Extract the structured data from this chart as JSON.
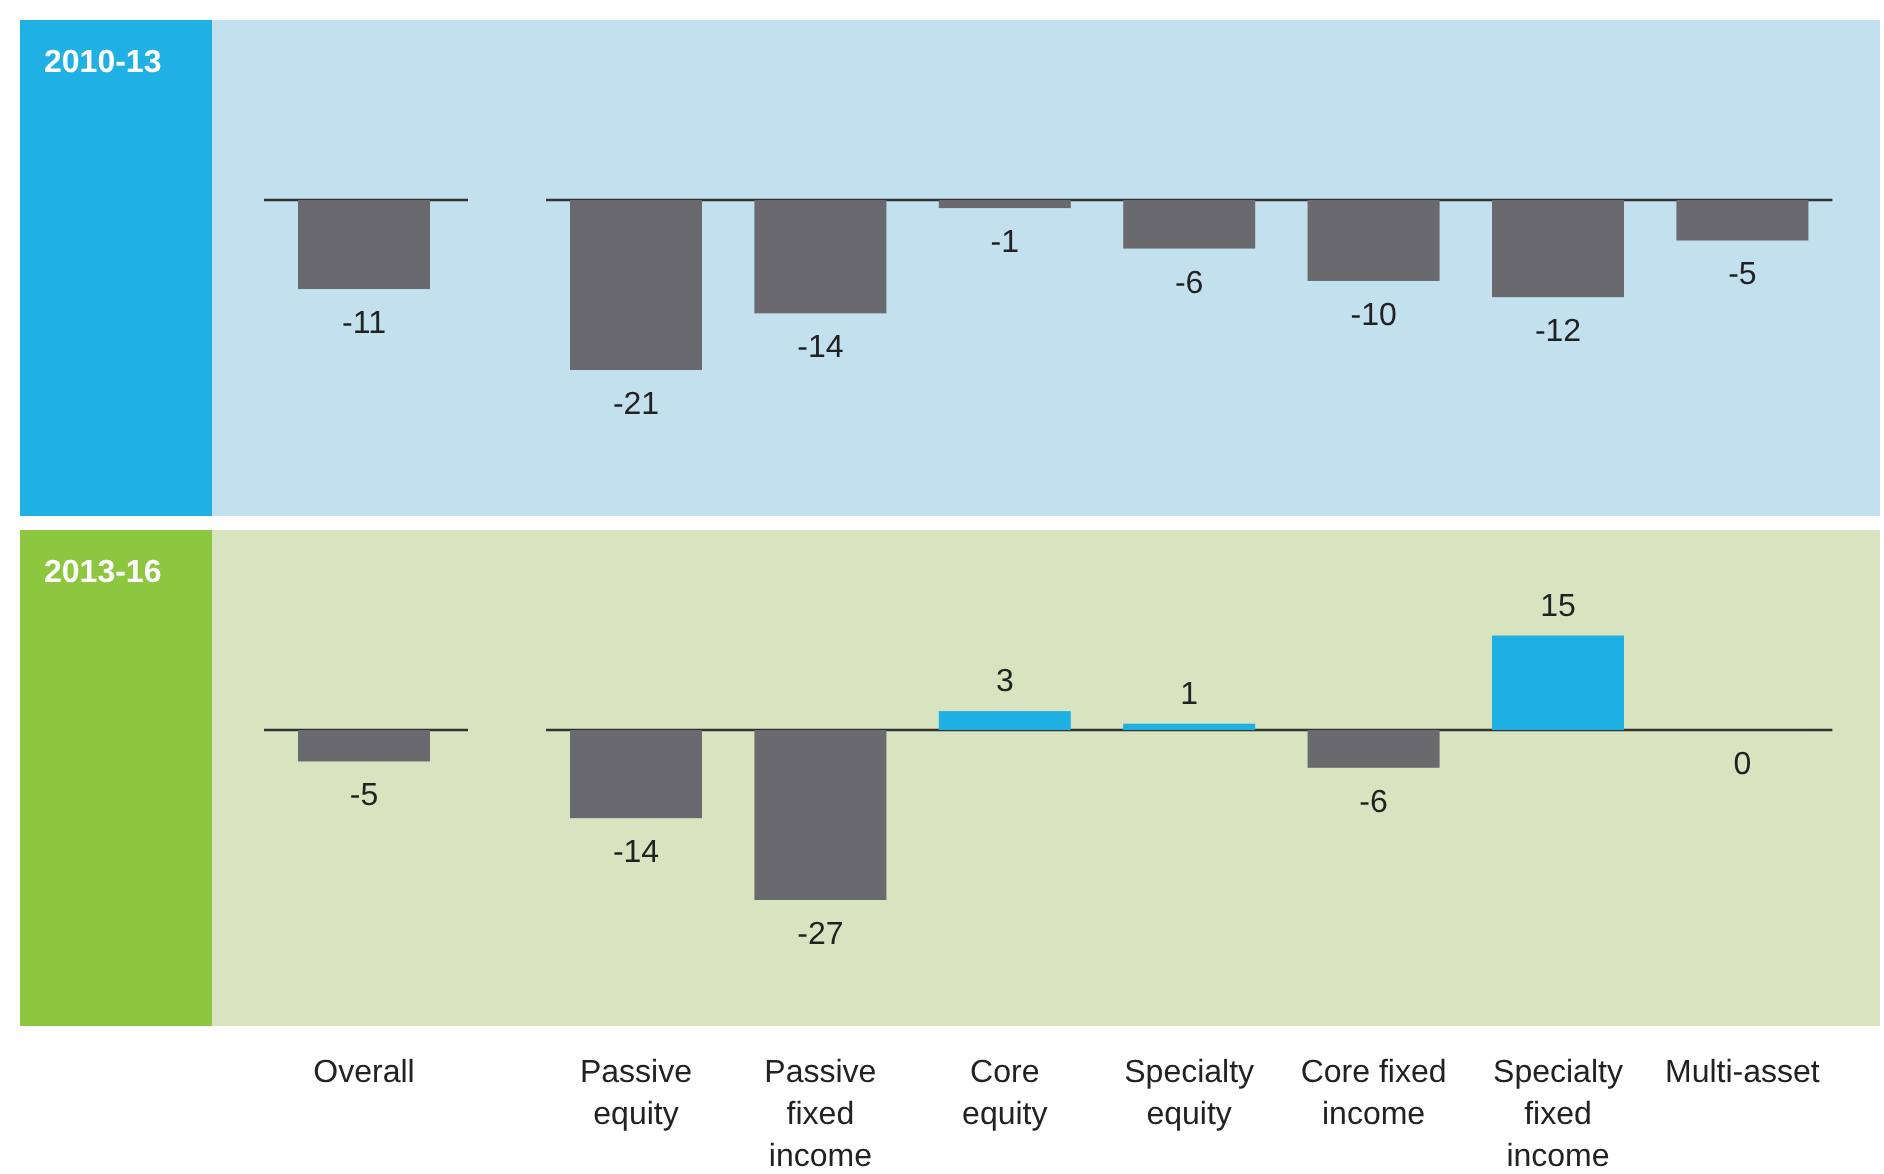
{
  "chart_data": [
    {
      "type": "bar",
      "title": "2010-13",
      "categories": [
        "Overall",
        "Passive equity",
        "Passive fixed income",
        "Core equity",
        "Specialty equity",
        "Core fixed income",
        "Specialty fixed income",
        "Multi-asset"
      ],
      "values": [
        -11,
        -21,
        -14,
        -1,
        -6,
        -10,
        -12,
        -5
      ],
      "colors": [
        "#6a6a6e",
        "#6a6a6e",
        "#6a6a6e",
        "#6a6a6e",
        "#6a6a6e",
        "#6a6a6e",
        "#6a6a6e",
        "#6a6a6e"
      ],
      "data_labels": true,
      "tick_labels": false
    },
    {
      "type": "bar",
      "title": "2013-16",
      "categories": [
        "Overall",
        "Passive equity",
        "Passive fixed income",
        "Core equity",
        "Specialty equity",
        "Core fixed income",
        "Specialty fixed income",
        "Multi-asset"
      ],
      "values": [
        -5,
        -14,
        -27,
        3,
        1,
        -6,
        15,
        0
      ],
      "colors": [
        "#6a6a6e",
        "#6a6a6e",
        "#6a6a6e",
        "#1eb0e3",
        "#1eb0e3",
        "#6a6a6e",
        "#1eb0e3",
        "#6a6a6e"
      ],
      "data_labels": true,
      "tick_labels": "x"
    }
  ]
}
